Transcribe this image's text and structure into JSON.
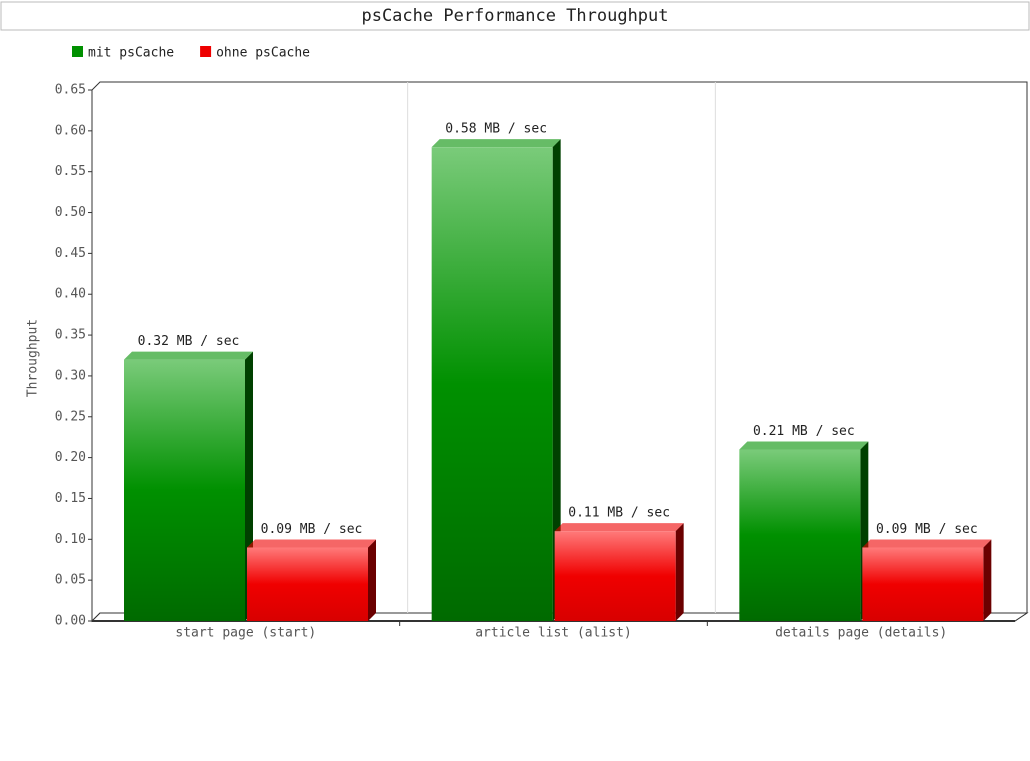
{
  "chart_data": {
    "type": "bar3d",
    "title": "psCache Performance Throughput",
    "y_label": "Throughput",
    "categories": [
      "start page (start)",
      "article list (alist)",
      "details page (details)"
    ],
    "series": [
      {
        "name": "mit psCache",
        "color": "#009000",
        "values": [
          0.32,
          0.58,
          0.21
        ],
        "value_labels": [
          "0.32 MB / sec",
          "0.58 MB / sec",
          "0.21 MB / sec"
        ]
      },
      {
        "name": "ohne psCache",
        "color": "#ee0000",
        "values": [
          0.09,
          0.11,
          0.09
        ],
        "value_labels": [
          "0.09 MB / sec",
          "0.11 MB / sec",
          "0.09 MB / sec"
        ]
      }
    ],
    "ylim": [
      0,
      0.65
    ],
    "yticks": [
      {
        "value": 0,
        "label": "0.00"
      },
      0.05,
      {
        "value": 0.1,
        "label": "0.10"
      },
      0.15,
      {
        "value": 0.2,
        "label": "0.20"
      },
      0.25,
      {
        "value": 0.3,
        "label": "0.30"
      },
      0.35,
      {
        "value": 0.4,
        "label": "0.40"
      },
      0.45,
      {
        "value": 0.5,
        "label": "0.50"
      },
      0.55,
      {
        "value": 0.6,
        "label": "0.60"
      },
      0.65
    ]
  }
}
